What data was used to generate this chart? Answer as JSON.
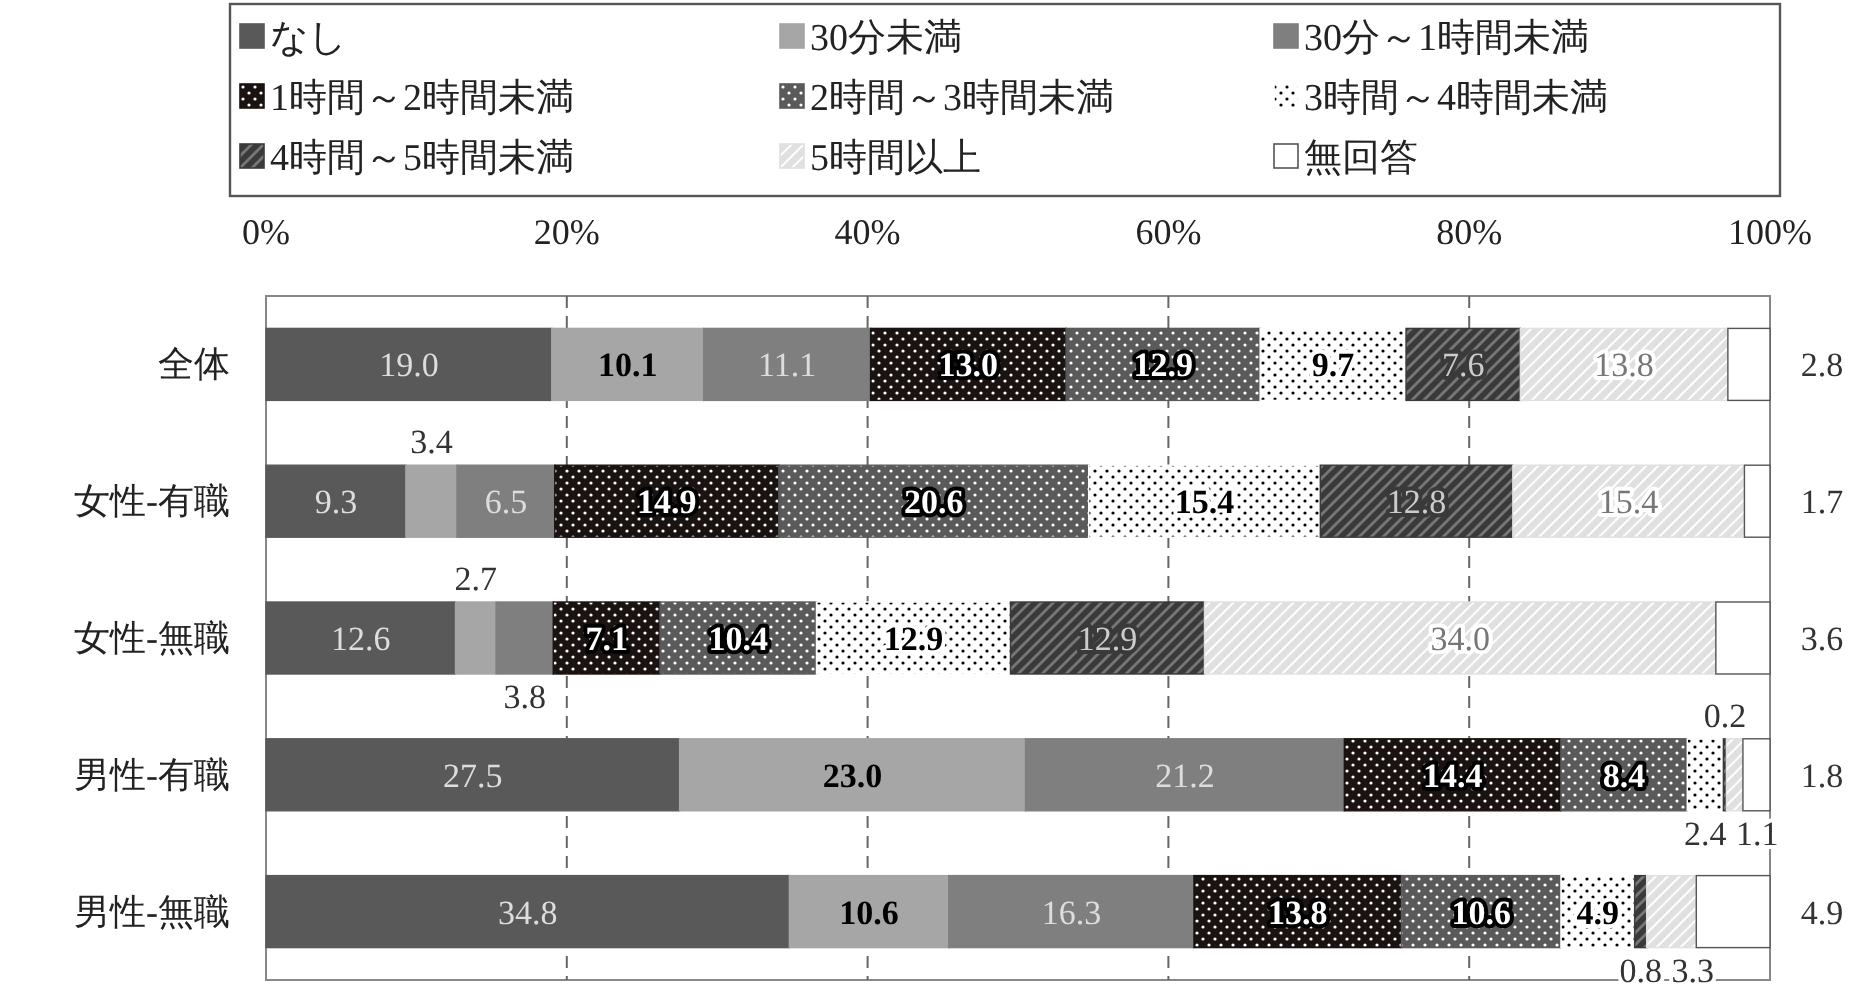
{
  "chart_data": {
    "type": "bar",
    "orientation": "horizontal",
    "stacked": true,
    "grid": "x",
    "legend": "top",
    "categories": [
      "全体",
      "女性-有職",
      "女性-無職",
      "男性-有職",
      "男性-無職"
    ],
    "xlim": [
      0,
      100
    ],
    "xticks": [
      {
        "value": 0,
        "label": "0%"
      },
      {
        "value": 20,
        "label": "20%"
      },
      {
        "value": 40,
        "label": "40%"
      },
      {
        "value": 60,
        "label": "60%"
      },
      {
        "value": 80,
        "label": "80%"
      },
      {
        "value": 100,
        "label": "100%"
      }
    ],
    "series": [
      {
        "name": "なし",
        "color": "#595959",
        "values": [
          19.0,
          9.3,
          12.6,
          27.5,
          34.8
        ],
        "value_labels": [
          "19.0",
          "9.3",
          "12.6",
          "27.5",
          "34.8"
        ]
      },
      {
        "name": "30分未満",
        "color": "#a6a6a6",
        "values": [
          10.1,
          3.4,
          2.7,
          23.0,
          10.6
        ],
        "value_labels": [
          "10.1",
          "3.4",
          "2.7",
          "23.0",
          "10.6"
        ]
      },
      {
        "name": "30分～1時間未満",
        "color": "#7f7f7f",
        "values": [
          11.1,
          6.5,
          3.8,
          21.2,
          16.3
        ],
        "value_labels": [
          "11.1",
          "6.5",
          "3.8",
          "21.2",
          "16.3"
        ]
      },
      {
        "name": "1時間～2時間未満",
        "color": "#1a1311",
        "values": [
          13.0,
          14.9,
          7.1,
          14.4,
          13.8
        ],
        "value_labels": [
          "13.0",
          "14.9",
          "7.1",
          "14.4",
          "13.8"
        ]
      },
      {
        "name": "2時間～3時間未満",
        "color": "#5a5a5a",
        "values": [
          12.9,
          20.6,
          10.4,
          8.4,
          10.6
        ],
        "value_labels": [
          "12.9",
          "20.6",
          "10.4",
          "8.4",
          "10.6"
        ]
      },
      {
        "name": "3時間～4時間未満",
        "color": "#ffffff",
        "values": [
          9.7,
          15.4,
          12.9,
          2.4,
          4.9
        ],
        "value_labels": [
          "9.7",
          "15.4",
          "12.9",
          "2.4",
          "4.9"
        ]
      },
      {
        "name": "4時間～5時間未満",
        "color": "#3a3a3a",
        "values": [
          7.6,
          12.8,
          12.9,
          0.2,
          0.8
        ],
        "value_labels": [
          "7.6",
          "12.8",
          "12.9",
          "0.2",
          "0.8"
        ]
      },
      {
        "name": "5時間以上",
        "color": "#e0e0e0",
        "values": [
          13.8,
          15.4,
          34.0,
          1.1,
          3.3
        ],
        "value_labels": [
          "13.8",
          "15.4",
          "34.0",
          "1.1",
          "3.3"
        ]
      },
      {
        "name": "無回答",
        "color": "#ffffff",
        "values": [
          2.8,
          1.7,
          3.6,
          1.8,
          4.9
        ],
        "value_labels": [
          "2.8",
          "1.7",
          "3.6",
          "1.8",
          "4.9"
        ]
      }
    ]
  }
}
